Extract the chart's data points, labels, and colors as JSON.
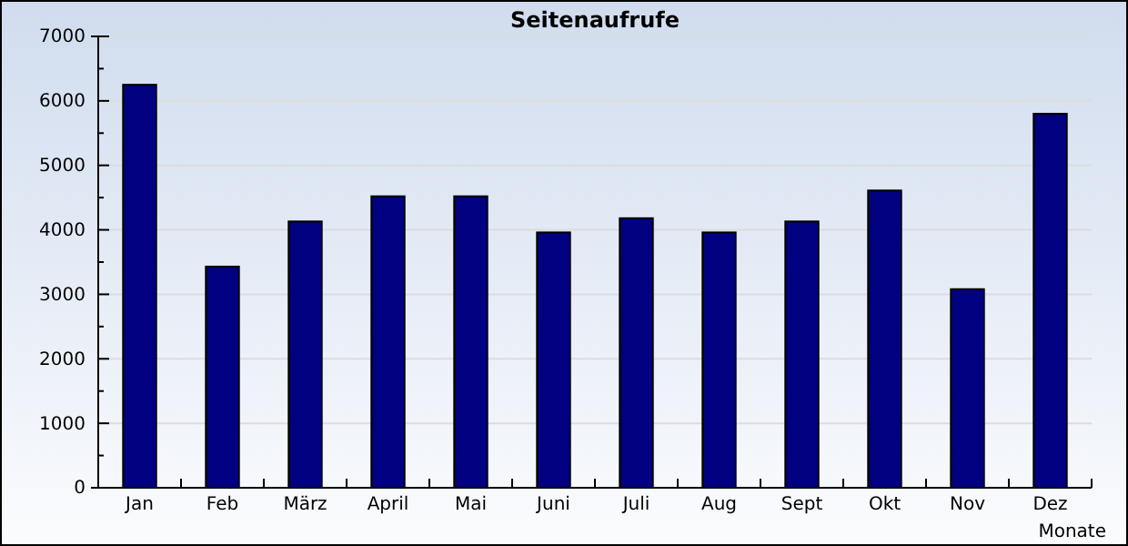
{
  "chart_data": {
    "type": "bar",
    "title": "Seitenaufrufe",
    "xlabel": "Monate",
    "categories": [
      "Jan",
      "Feb",
      "März",
      "April",
      "Mai",
      "Juni",
      "Juli",
      "Aug",
      "Sept",
      "Okt",
      "Nov",
      "Dez"
    ],
    "values": [
      6250,
      3430,
      4130,
      4520,
      4520,
      3960,
      4180,
      3960,
      4130,
      4610,
      3080,
      5800
    ],
    "color": "#000080",
    "ylim": [
      0,
      7000
    ],
    "yticks": [
      0,
      {
        "value": 500,
        "label": null
      },
      1000,
      {
        "value": 1500,
        "label": null
      },
      2000,
      {
        "value": 2500,
        "label": null
      },
      3000,
      {
        "value": 3500,
        "label": null
      },
      4000,
      {
        "value": 4500,
        "label": null
      },
      5000,
      {
        "value": 5500,
        "label": null
      },
      6000,
      {
        "value": 6500,
        "label": null
      },
      7000
    ],
    "grid": "y"
  }
}
